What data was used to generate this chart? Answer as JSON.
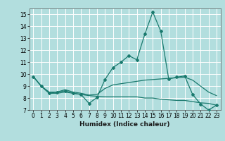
{
  "xlabel": "Humidex (Indice chaleur)",
  "ylabel": "",
  "background_color": "#b2dede",
  "grid_color": "#ffffff",
  "line_color": "#1a7a6e",
  "xlim": [
    -0.5,
    23.5
  ],
  "ylim": [
    7,
    15.5
  ],
  "xticks": [
    0,
    1,
    2,
    3,
    4,
    5,
    6,
    7,
    8,
    9,
    10,
    11,
    12,
    13,
    14,
    15,
    16,
    17,
    18,
    19,
    20,
    21,
    22,
    23
  ],
  "yticks": [
    7,
    8,
    9,
    10,
    11,
    12,
    13,
    14,
    15
  ],
  "line1_x": [
    0,
    1,
    2,
    3,
    4,
    5,
    6,
    7,
    8,
    9,
    10,
    11,
    12,
    13,
    14,
    15,
    16,
    17,
    18,
    19,
    20,
    21,
    22,
    23
  ],
  "line1_y": [
    9.8,
    9.0,
    8.4,
    8.5,
    8.6,
    8.4,
    8.3,
    7.55,
    8.05,
    9.55,
    10.55,
    11.0,
    11.55,
    11.2,
    13.35,
    15.2,
    13.6,
    9.6,
    9.75,
    9.85,
    8.3,
    7.5,
    7.0,
    7.4
  ],
  "line2_x": [
    0,
    1,
    2,
    3,
    4,
    5,
    6,
    7,
    8,
    9,
    10,
    11,
    12,
    13,
    14,
    15,
    16,
    17,
    18,
    19,
    20,
    21,
    22,
    23
  ],
  "line2_y": [
    9.8,
    9.0,
    8.5,
    8.5,
    8.7,
    8.5,
    8.4,
    8.25,
    8.3,
    8.8,
    9.1,
    9.2,
    9.3,
    9.4,
    9.5,
    9.55,
    9.6,
    9.65,
    9.7,
    9.75,
    9.5,
    9.0,
    8.5,
    8.2
  ],
  "line3_x": [
    0,
    1,
    2,
    3,
    4,
    5,
    6,
    7,
    8,
    9,
    10,
    11,
    12,
    13,
    14,
    15,
    16,
    17,
    18,
    19,
    20,
    21,
    22,
    23
  ],
  "line3_y": [
    9.8,
    9.0,
    8.4,
    8.4,
    8.5,
    8.4,
    8.3,
    8.2,
    8.15,
    8.1,
    8.1,
    8.1,
    8.1,
    8.1,
    8.0,
    8.0,
    7.9,
    7.85,
    7.8,
    7.8,
    7.7,
    7.6,
    7.55,
    7.4
  ],
  "tick_fontsize": 5.5,
  "xlabel_fontsize": 6.5
}
